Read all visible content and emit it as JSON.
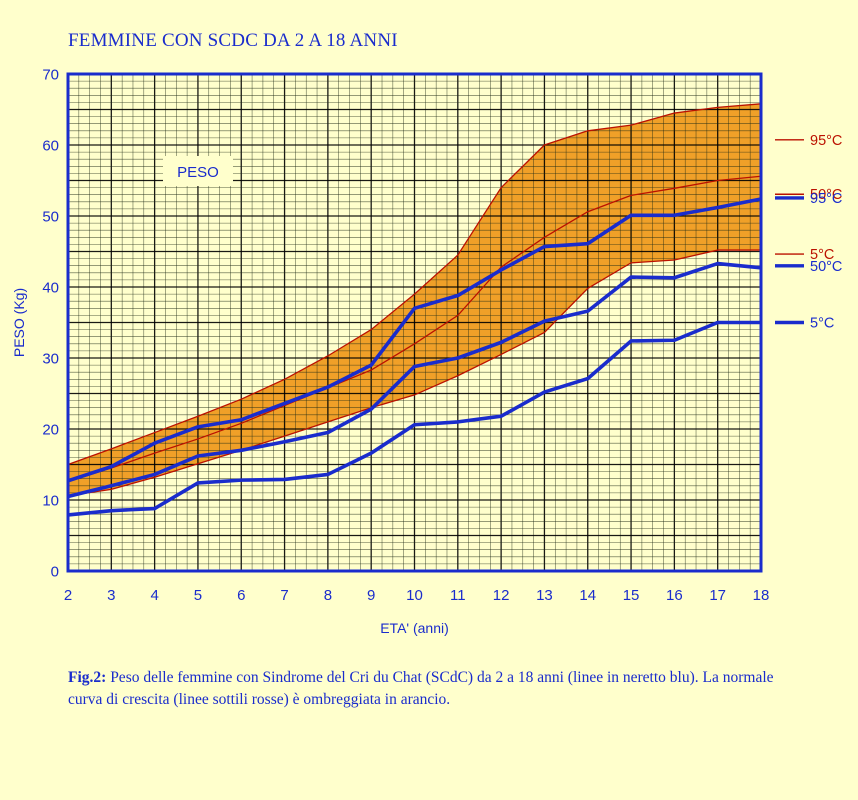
{
  "title": "FEMMINE CON SCDC DA 2 A 18 ANNI",
  "caption": {
    "label": "Fig.2:",
    "text": "Peso delle femmine con Sindrome del Cri du Chat (SCdC) da 2 a 18 anni (linee in neretto blu). La normale curva di crescita (linee sottili rosse) è ombreggiata in arancio."
  },
  "colors": {
    "background": "#ffffcc",
    "grid_minor": "#1e2a14",
    "grid_major": "#000000",
    "frame": "#1a2ccc",
    "band": "#f0a028",
    "normal_line": "#bb1100",
    "scdc_line": "#1a2ccc"
  },
  "chart_data": {
    "type": "line",
    "title": "FEMMINE CON SCDC DA 2 A 18 ANNI",
    "xlabel": "ETA' (anni)",
    "ylabel": "PESO (Kg)",
    "annotation": "PESO",
    "xlim": [
      2,
      18
    ],
    "ylim": [
      0,
      70
    ],
    "x": [
      2,
      3,
      4,
      5,
      6,
      7,
      8,
      9,
      10,
      11,
      12,
      13,
      14,
      15,
      16,
      17,
      18
    ],
    "x_ticks": [
      2,
      3,
      4,
      5,
      6,
      7,
      8,
      9,
      10,
      11,
      12,
      13,
      14,
      15,
      16,
      17,
      18
    ],
    "y_ticks": [
      0,
      10,
      20,
      30,
      40,
      50,
      60,
      70
    ],
    "grid": true,
    "normal_series": [
      {
        "name": "95°C",
        "values": [
          15,
          17.2,
          19.5,
          21.8,
          24.2,
          27,
          30.3,
          34,
          39,
          44.5,
          54,
          60,
          62,
          62.8,
          64.5,
          65.3,
          65.8
        ]
      },
      {
        "name": "50°C",
        "values": [
          12.6,
          14.5,
          16.6,
          18.6,
          20.8,
          23.3,
          25.8,
          28.3,
          32,
          36,
          42.8,
          47,
          50.6,
          52.9,
          53.9,
          55,
          55.6
        ]
      },
      {
        "name": "5°C",
        "values": [
          10.6,
          11.5,
          13.2,
          15.1,
          17,
          19,
          21,
          23,
          24.8,
          27.5,
          30.5,
          33.6,
          39.8,
          43.4,
          43.8,
          45.2,
          45.2
        ]
      }
    ],
    "scdc_series": [
      {
        "name": "95°C",
        "values": [
          12.7,
          14.7,
          18,
          20.3,
          21.3,
          23.6,
          25.9,
          29,
          37,
          38.8,
          42.4,
          45.7,
          46.1,
          50.1,
          50.1,
          51.2,
          52.4
        ]
      },
      {
        "name": "50°C",
        "values": [
          10.5,
          12,
          13.6,
          16.2,
          17,
          18.2,
          19.5,
          22.8,
          28.8,
          30,
          32.2,
          35.2,
          36.6,
          41.4,
          41.3,
          43.3,
          42.7
        ]
      },
      {
        "name": "5°C",
        "values": [
          7.9,
          8.5,
          8.8,
          12.4,
          12.8,
          12.9,
          13.6,
          16.6,
          20.6,
          21,
          21.8,
          25.2,
          27.1,
          32.4,
          32.5,
          35,
          35
        ]
      }
    ]
  }
}
